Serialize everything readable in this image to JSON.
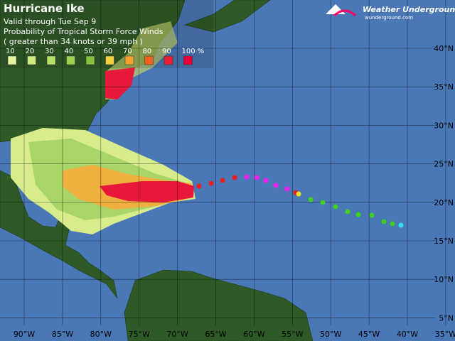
{
  "header": {
    "title": "Hurricane Ike",
    "valid": "Valid through Tue Sep 9",
    "product": "Probability of Tropical Storm Force Winds",
    "threshold": "( greater than 34 knots or 39 mph )"
  },
  "legend": {
    "labels": [
      "10",
      "20",
      "30",
      "40",
      "50",
      "60",
      "70",
      "80",
      "90",
      "100 %"
    ]
  },
  "logo": {
    "name": "Weather Underground",
    "site": "wunderground.com"
  },
  "longitudes": [
    "90°W",
    "85°W",
    "80°W",
    "75°W",
    "70°W",
    "65°W",
    "60°W",
    "55°W",
    "50°W",
    "45°W",
    "40°W",
    "35°W"
  ],
  "latitudes": [
    "40°N",
    "35°N",
    "30°N",
    "25°N",
    "20°N",
    "15°N",
    "10°N",
    "5°N"
  ]
}
